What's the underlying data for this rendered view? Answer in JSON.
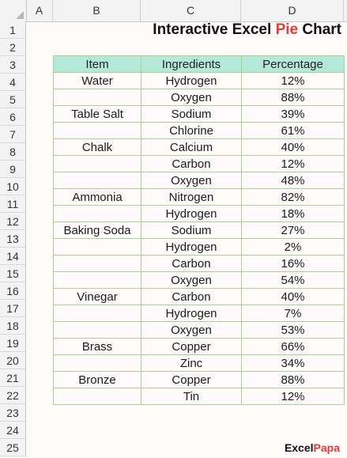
{
  "columns": [
    "A",
    "B",
    "C",
    "D"
  ],
  "rows": [
    "1",
    "2",
    "3",
    "4",
    "5",
    "6",
    "7",
    "8",
    "9",
    "10",
    "11",
    "12",
    "13",
    "14",
    "15",
    "16",
    "17",
    "18",
    "19",
    "20",
    "21",
    "22",
    "23",
    "24",
    "25"
  ],
  "title": {
    "part1": "Interactive Excel ",
    "accent": "Pie",
    "part2": " Chart"
  },
  "table": {
    "headers": [
      "Item",
      "Ingredients",
      "Percentage"
    ],
    "rows": [
      [
        "Water",
        "Hydrogen",
        "12%"
      ],
      [
        "",
        "Oxygen",
        "88%"
      ],
      [
        "Table Salt",
        "Sodium",
        "39%"
      ],
      [
        "",
        "Chlorine",
        "61%"
      ],
      [
        "Chalk",
        "Calcium",
        "40%"
      ],
      [
        "",
        "Carbon",
        "12%"
      ],
      [
        "",
        "Oxygen",
        "48%"
      ],
      [
        "Ammonia",
        "Nitrogen",
        "82%"
      ],
      [
        "",
        "Hydrogen",
        "18%"
      ],
      [
        "Baking Soda",
        "Sodium",
        "27%"
      ],
      [
        "",
        "Hydrogen",
        "2%"
      ],
      [
        "",
        "Carbon",
        "16%"
      ],
      [
        "",
        "Oxygen",
        "54%"
      ],
      [
        "Vinegar",
        "Carbon",
        "40%"
      ],
      [
        "",
        "Hydrogen",
        "7%"
      ],
      [
        "",
        "Oxygen",
        "53%"
      ],
      [
        "Brass",
        "Copper",
        "66%"
      ],
      [
        "",
        "Zinc",
        "34%"
      ],
      [
        "Bronze",
        "Copper",
        "88%"
      ],
      [
        "",
        "Tin",
        "12%"
      ]
    ]
  },
  "brand": {
    "part1": "Excel",
    "accent": "Papa"
  },
  "colors": {
    "header_fill": "#b4e8d8",
    "border": "#a9d08e",
    "accent": "#e03b3b",
    "background": "#fffafa"
  }
}
